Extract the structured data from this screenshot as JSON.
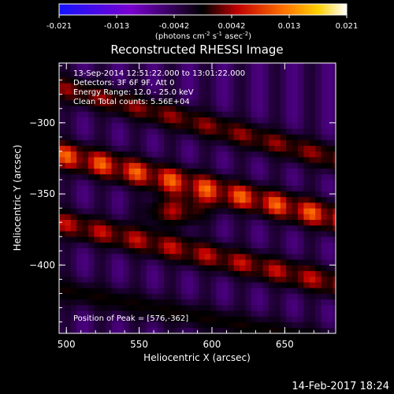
{
  "chart_data": {
    "type": "heatmap",
    "title": "Reconstructed RHESSI Image",
    "xlabel": "Heliocentric X (arcsec)",
    "ylabel": "Heliocentric Y (arcsec)",
    "xlim": [
      495,
      685
    ],
    "ylim": [
      -448,
      -258
    ],
    "x_ticks": [
      500,
      550,
      600,
      650
    ],
    "y_ticks": [
      -300,
      -350,
      -400
    ],
    "colorbar": {
      "ticks": [
        "-0.021",
        "-0.013",
        "-0.0042",
        "0.0042",
        "0.013",
        "0.021"
      ],
      "range": [
        -0.021,
        0.021
      ],
      "label_main": "(photons cm",
      "label_exp1": "-2",
      "label_mid": " s",
      "label_exp2": "-1",
      "label_end": " asec",
      "label_exp3": "-2",
      "label_close": ")"
    },
    "annotations": [
      "13-Sep-2014 12:51:22.000 to 13:01:22.000",
      "Detectors: 3F 6F 9F, Att 0",
      "Energy Range: 12.0 - 25.0 keV",
      "Clean    Total counts: 5.56E+04"
    ],
    "peak_label": "Position of Peak = [576,-362]",
    "peak": [
      576,
      -362
    ],
    "ridges": [
      {
        "x1": 495,
        "y1": -275,
        "x2": 685,
        "y2": -325,
        "amp": 0.011
      },
      {
        "x1": 495,
        "y1": -322,
        "x2": 685,
        "y2": -367,
        "amp": 0.018
      },
      {
        "x1": 495,
        "y1": -370,
        "x2": 685,
        "y2": -413,
        "amp": 0.013
      },
      {
        "x1": 495,
        "y1": -417,
        "x2": 685,
        "y2": -455,
        "amp": 0.007
      }
    ]
  },
  "footer_timestamp": "14-Feb-2017 18:24"
}
